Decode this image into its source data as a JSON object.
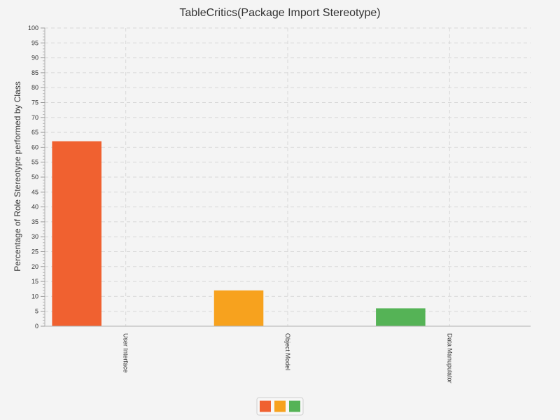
{
  "chart_data": {
    "type": "bar",
    "title": "TableCritics(Package Import Stereotype)",
    "xlabel": "",
    "ylabel": "Percentage of Role Stereotype performed by Class",
    "ylim": [
      0,
      100
    ],
    "ytick_step": 5,
    "yticks": [
      "0",
      "5",
      "10",
      "15",
      "20",
      "25",
      "30",
      "35",
      "40",
      "45",
      "50",
      "55",
      "60",
      "65",
      "70",
      "75",
      "80",
      "85",
      "90",
      "95",
      "100"
    ],
    "categories": [
      "User Interface",
      "Object Model",
      "Data Manupulator"
    ],
    "values": [
      62,
      12,
      6
    ],
    "colors": [
      "#f06130",
      "#f7a21e",
      "#55b356"
    ],
    "grid": true,
    "legend": {
      "placement": "bottom-center",
      "entries": [
        "",
        "",
        ""
      ]
    }
  }
}
